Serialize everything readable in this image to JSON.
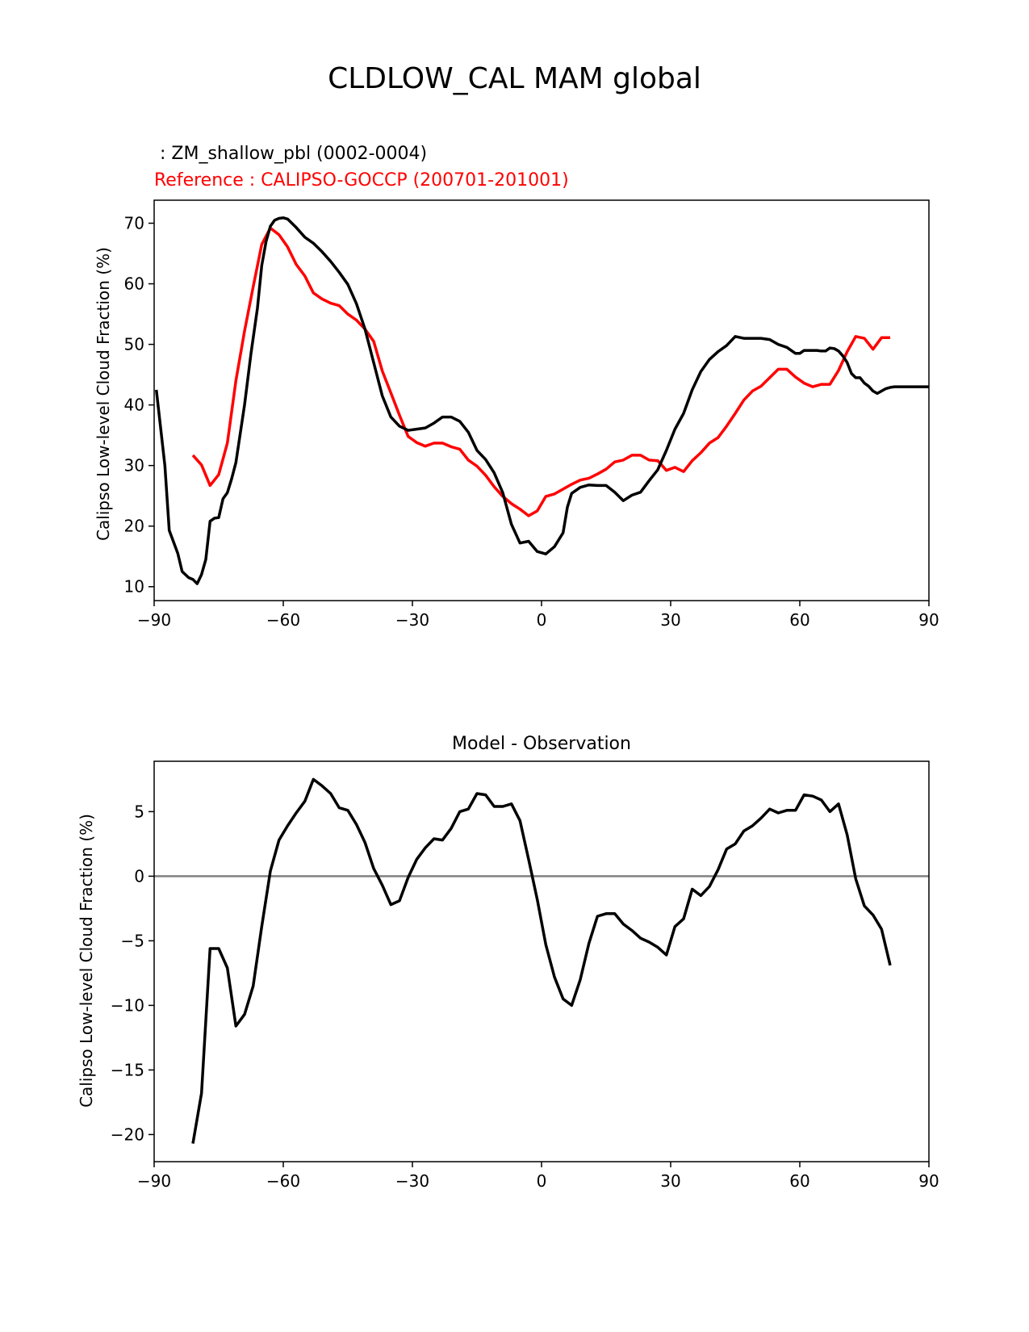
{
  "figure": {
    "suptitle": "CLDLOW_CAL MAM global"
  },
  "chart_data": [
    {
      "type": "line",
      "title_model": " : ZM_shallow_pbl (0002-0004)",
      "title_reference": "Reference : CALIPSO-GOCCP (200701-201001)",
      "xlabel": "",
      "ylabel": "Calipso Low-level Cloud Fraction (%)",
      "xlim": [
        -90,
        90
      ],
      "ylim": [
        7.7,
        73.8
      ],
      "xticks": [
        -90,
        -60,
        -30,
        0,
        30,
        60,
        90
      ],
      "xtick_labels": [
        "−90",
        "−60",
        "−30",
        "0",
        "30",
        "60",
        "90"
      ],
      "yticks": [
        10,
        20,
        30,
        40,
        50,
        60,
        70
      ],
      "ytick_labels": [
        "10",
        "20",
        "30",
        "40",
        "50",
        "60",
        "70"
      ],
      "grid": false,
      "colors": {
        "model": "#000000",
        "reference": "#ff0000"
      },
      "series": [
        {
          "name": "ZM_shallow_pbl (0002-0004)",
          "color": "#000000",
          "x": [
            -89.5,
            -87.5,
            -86.5,
            -84.5,
            -83.5,
            -82,
            -81,
            -80,
            -79,
            -78,
            -77,
            -76,
            -75,
            -74,
            -73,
            -72,
            -71,
            -69,
            -67.5,
            -66,
            -65,
            -64,
            -63,
            -62,
            -61,
            -60,
            -59,
            -57,
            -55,
            -53,
            -51,
            -49,
            -47,
            -45,
            -43,
            -41,
            -39,
            -37,
            -35,
            -33,
            -31,
            -29,
            -27,
            -25,
            -23,
            -21,
            -19,
            -17,
            -15,
            -13,
            -11,
            -9,
            -7,
            -5,
            -3,
            -1,
            1,
            3,
            5,
            6,
            7,
            9,
            11,
            13,
            15,
            17,
            19,
            21,
            23,
            25,
            27,
            29,
            31,
            33,
            35,
            37,
            39,
            41,
            43,
            45,
            47,
            49,
            51,
            53,
            55,
            57,
            58,
            59,
            60,
            61,
            62,
            63,
            64,
            65,
            66,
            67,
            68,
            69,
            70,
            71,
            72,
            73,
            74,
            75,
            76,
            77,
            78,
            79,
            80,
            81,
            82,
            83,
            84,
            85,
            86,
            87,
            88,
            89,
            90
          ],
          "values": [
            42.5,
            30,
            19.3,
            15.5,
            12.5,
            11.5,
            11.2,
            10.5,
            12,
            14.5,
            20.8,
            21.3,
            21.4,
            24.5,
            25.5,
            27.8,
            30.5,
            40,
            48.5,
            56,
            63,
            67,
            69.5,
            70.5,
            70.8,
            70.9,
            70.7,
            69.3,
            67.7,
            66.7,
            65.3,
            63.7,
            61.9,
            59.9,
            56.7,
            52.5,
            47,
            41.5,
            38,
            36.5,
            35.8,
            36,
            36.2,
            37,
            38,
            38,
            37.3,
            35.5,
            32.5,
            31,
            28.8,
            25.5,
            20.3,
            17.2,
            17.5,
            15.8,
            15.4,
            16.6,
            18.9,
            23.1,
            25.4,
            26.4,
            26.8,
            26.7,
            26.7,
            25.6,
            24.2,
            25.1,
            25.6,
            27.5,
            29.3,
            32.5,
            36,
            38.6,
            42.5,
            45.5,
            47.5,
            48.8,
            49.8,
            51.3,
            51,
            51,
            51,
            50.8,
            50,
            49.5,
            49,
            48.5,
            48.5,
            49,
            49,
            49,
            49,
            48.9,
            48.9,
            49.4,
            49.3,
            48.9,
            48.1,
            47,
            45.2,
            44.5,
            44.5,
            43.6,
            43.1,
            42.3,
            41.9,
            42.3,
            42.7,
            42.9,
            43,
            43,
            43,
            43,
            43,
            43,
            43,
            43,
            43
          ],
          "note": "model series"
        },
        {
          "name": "CALIPSO-GOCCP (200701-201001)",
          "color": "#ff0000",
          "x": [
            -81,
            -79,
            -77,
            -75,
            -73,
            -71,
            -69,
            -67,
            -65,
            -63,
            -61,
            -59,
            -57,
            -55,
            -53,
            -51,
            -49,
            -47,
            -45,
            -43,
            -41,
            -39,
            -37,
            -35,
            -33,
            -31,
            -29,
            -27,
            -25,
            -23,
            -21,
            -19,
            -17,
            -15,
            -13,
            -11,
            -9,
            -7,
            -5,
            -3,
            -1,
            1,
            3,
            5,
            7,
            9,
            11,
            13,
            15,
            17,
            19,
            21,
            23,
            25,
            27,
            29,
            31,
            33,
            35,
            37,
            39,
            41,
            43,
            45,
            47,
            49,
            51,
            53,
            55,
            57,
            59,
            61,
            63,
            65,
            67,
            69,
            71,
            73,
            75,
            77,
            79,
            81
          ],
          "values": [
            31.7,
            30.1,
            26.7,
            28.5,
            33.7,
            44,
            52.2,
            59.5,
            66.5,
            69.2,
            68.1,
            66.1,
            63.2,
            61.3,
            58.5,
            57.5,
            56.8,
            56.4,
            55,
            54,
            52.5,
            50.5,
            45.6,
            42,
            38.3,
            34.8,
            33.8,
            33.2,
            33.7,
            33.7,
            33.1,
            32.7,
            30.9,
            29.9,
            28.4,
            26.5,
            24.9,
            23.7,
            22.8,
            21.7,
            22.5,
            24.9,
            25.3,
            26.1,
            26.9,
            27.6,
            27.9,
            28.6,
            29.4,
            30.6,
            30.9,
            31.7,
            31.7,
            30.9,
            30.8,
            29.2,
            29.7,
            29,
            30.8,
            32.1,
            33.7,
            34.6,
            36.5,
            38.6,
            40.8,
            42.3,
            43.1,
            44.5,
            45.9,
            45.9,
            44.6,
            43.6,
            43,
            43.4,
            43.4,
            45.7,
            48.8,
            51.3,
            51,
            49.2,
            51.1,
            51.1
          ],
          "note": "reference series"
        }
      ]
    },
    {
      "type": "line",
      "title": "Model - Observation",
      "xlabel": "",
      "ylabel": "Calipso Low-level Cloud Fraction (%)",
      "xlim": [
        -90,
        90
      ],
      "ylim": [
        -22.1,
        8.9
      ],
      "xticks": [
        -90,
        -60,
        -30,
        0,
        30,
        60,
        90
      ],
      "xtick_labels": [
        "−90",
        "−60",
        "−30",
        "0",
        "30",
        "60",
        "90"
      ],
      "yticks": [
        -20,
        -15,
        -10,
        -5,
        0,
        5
      ],
      "ytick_labels": [
        "−20",
        "−15",
        "−10",
        "−5",
        "0",
        "5"
      ],
      "grid": false,
      "zero_line_color": "#808080",
      "series": [
        {
          "name": "Model - Observation",
          "color": "#000000",
          "x": [
            -81,
            -79,
            -77,
            -75,
            -73,
            -71,
            -69,
            -67,
            -65,
            -63,
            -61,
            -59,
            -57,
            -55,
            -53,
            -51,
            -49,
            -47,
            -45,
            -43,
            -41,
            -39,
            -37,
            -35,
            -33,
            -31,
            -29,
            -27,
            -25,
            -23,
            -21,
            -19,
            -17,
            -15,
            -13,
            -11,
            -9,
            -7,
            -5,
            -3,
            -1,
            1,
            3,
            5,
            7,
            9,
            11,
            13,
            15,
            17,
            19,
            21,
            23,
            25,
            27,
            29,
            31,
            33,
            35,
            37,
            39,
            41,
            43,
            45,
            47,
            49,
            51,
            53,
            55,
            57,
            59,
            61,
            63,
            65,
            67,
            69,
            71,
            73,
            75,
            77,
            79,
            81
          ],
          "values": [
            -20.7,
            -16.8,
            -5.6,
            -5.6,
            -7.1,
            -11.6,
            -10.7,
            -8.5,
            -3.9,
            0.4,
            2.8,
            3.9,
            4.9,
            5.8,
            7.5,
            7.0,
            6.4,
            5.3,
            5.1,
            4.0,
            2.6,
            0.6,
            -0.7,
            -2.2,
            -1.9,
            -0.1,
            1.3,
            2.2,
            2.9,
            2.8,
            3.7,
            5.0,
            5.2,
            6.4,
            6.3,
            5.4,
            5.4,
            5.6,
            4.3,
            1.3,
            -1.8,
            -5.3,
            -7.8,
            -9.5,
            -10.0,
            -8.0,
            -5.2,
            -3.1,
            -2.9,
            -2.9,
            -3.7,
            -4.2,
            -4.8,
            -5.1,
            -5.5,
            -6.1,
            -3.9,
            -3.3,
            -1.0,
            -1.5,
            -0.8,
            0.5,
            2.1,
            2.5,
            3.5,
            3.9,
            4.5,
            5.2,
            4.9,
            5.1,
            5.1,
            6.3,
            6.2,
            5.9,
            5.0,
            5.6,
            3.2,
            -0.2,
            -2.3,
            -3.0,
            -4.1,
            -6.9
          ]
        }
      ]
    }
  ]
}
